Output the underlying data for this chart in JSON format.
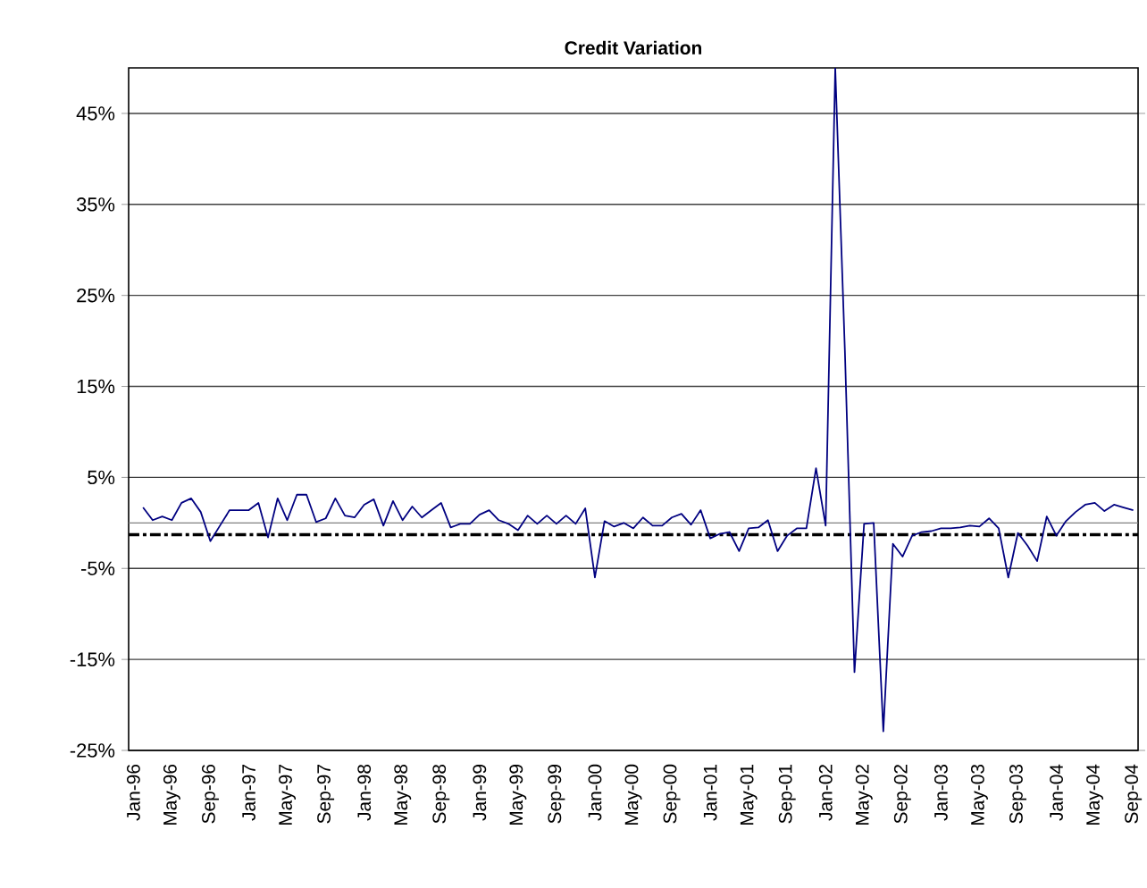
{
  "chart_data": {
    "type": "line",
    "title": "Credit Variation",
    "categories": [
      "Jan-96",
      null,
      null,
      null,
      "May-96",
      null,
      null,
      null,
      "Sep-96",
      null,
      null,
      null,
      "Jan-97",
      null,
      null,
      null,
      "May-97",
      null,
      null,
      null,
      "Sep-97",
      null,
      null,
      null,
      "Jan-98",
      null,
      null,
      null,
      "May-98",
      null,
      null,
      null,
      "Sep-98",
      null,
      null,
      null,
      "Jan-99",
      null,
      null,
      null,
      "May-99",
      null,
      null,
      null,
      "Sep-99",
      null,
      null,
      null,
      "Jan-00",
      null,
      null,
      null,
      "May-00",
      null,
      null,
      null,
      "Sep-00",
      null,
      null,
      null,
      "Jan-01",
      null,
      null,
      null,
      "May-01",
      null,
      null,
      null,
      "Sep-01",
      null,
      null,
      null,
      "Jan-02",
      null,
      null,
      null,
      "May-02",
      null,
      null,
      null,
      "Sep-02",
      null,
      null,
      null,
      "Jan-03",
      null,
      null,
      null,
      "May-03",
      null,
      null,
      null,
      "Sep-03",
      null,
      null,
      null,
      "Jan-04",
      null,
      null,
      null,
      "May-04",
      null,
      null,
      null,
      "Sep-04"
    ],
    "series": [
      {
        "color": "#000080",
        "values": [
          null,
          1.7,
          0.3,
          0.7,
          0.3,
          2.2,
          2.7,
          1.2,
          -2.0,
          -0.3,
          1.4,
          1.4,
          1.4,
          2.2,
          -1.6,
          2.7,
          0.3,
          3.1,
          3.1,
          0.1,
          0.5,
          2.7,
          0.8,
          0.6,
          2.0,
          2.6,
          -0.3,
          2.4,
          0.3,
          1.8,
          0.6,
          1.4,
          2.2,
          -0.5,
          -0.1,
          -0.1,
          0.9,
          1.4,
          0.3,
          -0.1,
          -0.8,
          0.8,
          -0.1,
          0.8,
          -0.1,
          0.8,
          -0.1,
          1.6,
          -6.0,
          0.2,
          -0.4,
          0.0,
          -0.6,
          0.6,
          -0.3,
          -0.3,
          0.6,
          1.0,
          -0.2,
          1.4,
          -1.7,
          -1.2,
          -1.0,
          -3.1,
          -0.6,
          -0.5,
          0.3,
          -3.1,
          -1.4,
          -0.6,
          -0.6,
          6.0,
          -0.3,
          50,
          19,
          -16.4,
          -0.1,
          0.0,
          -22.9,
          -2.3,
          -3.7,
          -1.4,
          -1.0,
          -0.9,
          -0.6,
          -0.6,
          -0.5,
          -0.3,
          -0.4,
          0.5,
          -0.6,
          -6.0,
          -1.1,
          -2.5,
          -4.2,
          0.7,
          -1.4,
          0.2,
          1.2,
          2.0,
          2.2,
          1.3,
          2.0,
          1.7,
          1.4
        ]
      }
    ],
    "ylim": [
      -25,
      50
    ],
    "yticks": [
      {
        "value": -25,
        "label": "-25%"
      },
      {
        "value": -15,
        "label": "-15%"
      },
      {
        "value": -5,
        "label": "-5%"
      },
      {
        "value": 5,
        "label": "5%"
      },
      {
        "value": 15,
        "label": "15%"
      },
      {
        "value": 25,
        "label": "25%"
      },
      {
        "value": 35,
        "label": "35%"
      },
      {
        "value": 45,
        "label": "45%"
      }
    ],
    "ref_lines": [
      {
        "axis": "y",
        "value": 0,
        "color": "#808080",
        "line_style": "solid"
      },
      {
        "axis": "y",
        "value": -1.3,
        "color": "#000000",
        "line_style": "dashed"
      }
    ],
    "grid": "y",
    "marker": "none",
    "line_style": "solid"
  }
}
